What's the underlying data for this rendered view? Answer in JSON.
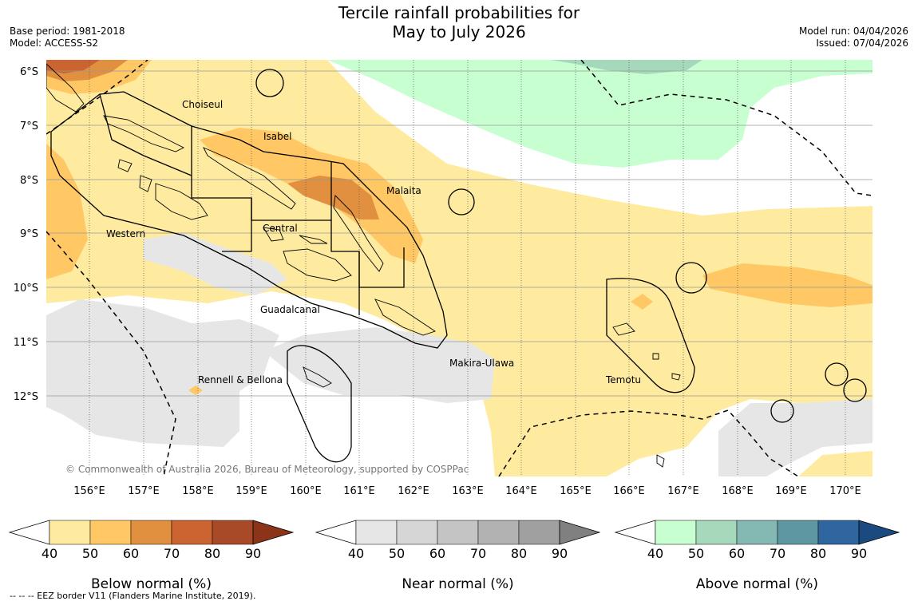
{
  "title_line1": "Tercile rainfall probabilities for",
  "title_line2": "May to July 2026",
  "meta_left": {
    "base_period": "Base period: 1981-2018",
    "model": "Model: ACCESS-S2"
  },
  "meta_right": {
    "model_run": "Model run: 04/04/2026",
    "issued": "Issued: 07/04/2026"
  },
  "copyright": "© Commonwealth of Australia 2026, Bureau of Meteorology, supported by COSPPac",
  "map": {
    "lat_labels": [
      "6°S",
      "7°S",
      "8°S",
      "9°S",
      "10°S",
      "11°S",
      "12°S"
    ],
    "lon_labels": [
      "156°E",
      "157°E",
      "158°E",
      "159°E",
      "160°E",
      "161°E",
      "162°E",
      "163°E",
      "164°E",
      "165°E",
      "166°E",
      "167°E",
      "168°E",
      "169°E",
      "170°E"
    ],
    "provinces": [
      "Choiseul",
      "Isabel",
      "Malaita",
      "Central",
      "Western",
      "Guadalcanal",
      "Makira-Ulawa",
      "Rennell & Bellona",
      "Temotu"
    ]
  },
  "colorbars": [
    {
      "label": "Below normal (%)",
      "ticks": [
        "40",
        "50",
        "60",
        "70",
        "80",
        "90"
      ],
      "colors": [
        "#ffeba0",
        "#ffc864",
        "#e0903f",
        "#cc6432",
        "#a84a28",
        "#8c3418"
      ]
    },
    {
      "label": "Near normal (%)",
      "ticks": [
        "40",
        "50",
        "60",
        "70",
        "80",
        "90"
      ],
      "colors": [
        "#e6e6e6",
        "#d6d6d6",
        "#c4c4c4",
        "#b2b2b2",
        "#a0a0a0",
        "#808080"
      ]
    },
    {
      "label": "Above normal (%)",
      "ticks": [
        "40",
        "50",
        "60",
        "70",
        "80",
        "90"
      ],
      "colors": [
        "#c8ffd0",
        "#a6d8bc",
        "#84b8b2",
        "#5e96a2",
        "#3066a0",
        "#1a4a80"
      ]
    }
  ],
  "footer": "--  --  -- EEZ border V11 (Flanders Marine Institute, 2019)."
}
